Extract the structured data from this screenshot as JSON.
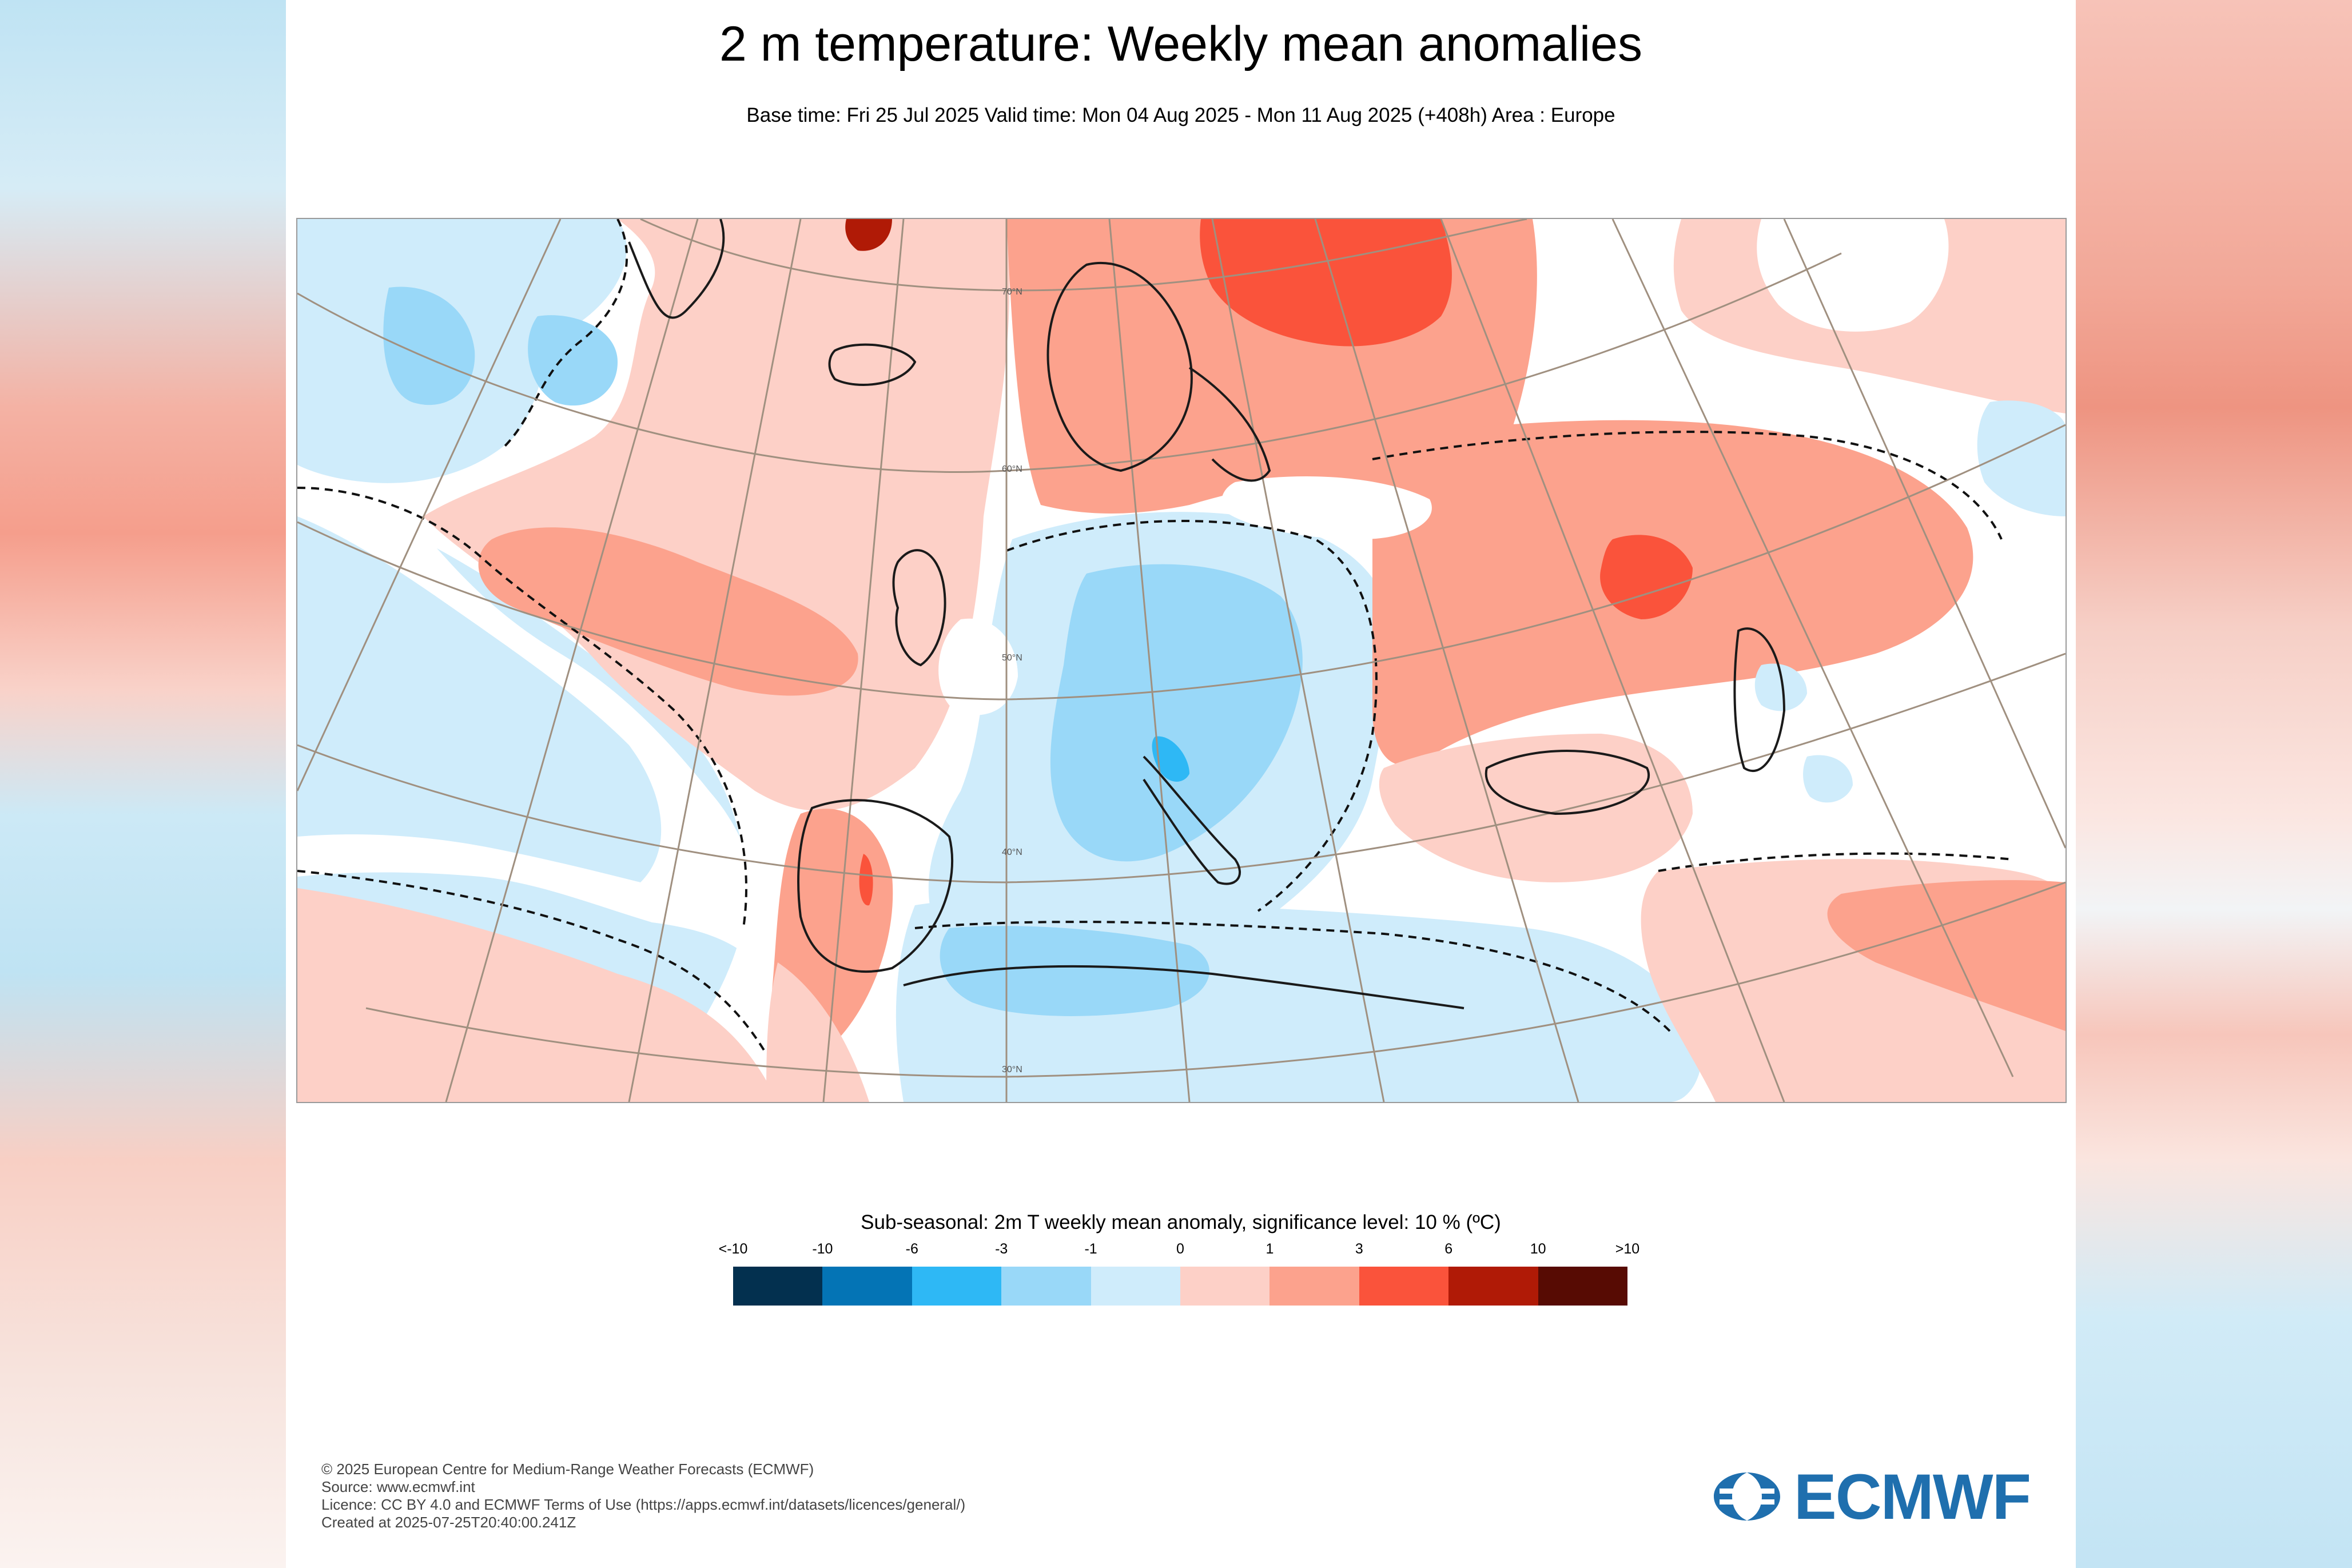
{
  "title": "2 m temperature: Weekly mean anomalies",
  "subtitle": "Base time: Fri 25 Jul 2025 Valid time: Mon 04 Aug 2025 - Mon 11 Aug 2025 (+408h) Area : Europe",
  "map": {
    "lat_labels": [
      "70°N",
      "60°N",
      "50°N",
      "40°N",
      "30°N"
    ]
  },
  "legend": {
    "title": "Sub-seasonal: 2m T weekly mean anomaly, significance level: 10 % (ºC)",
    "ticks": [
      "<-10",
      "-10",
      "-6",
      "-3",
      "-1",
      "0",
      "1",
      "3",
      "6",
      "10",
      ">10"
    ],
    "colors": [
      "#03304f",
      "#0474b5",
      "#2eb8f5",
      "#99d8f8",
      "#cfecfb",
      "#fdd0c7",
      "#fca28d",
      "#fa533b",
      "#b01a06",
      "#570b03"
    ]
  },
  "footer": {
    "lines": [
      "© 2025 European Centre for Medium-Range Weather Forecasts (ECMWF)",
      "Source: www.ecmwf.int",
      "Licence: CC BY 4.0 and ECMWF Terms of Use (https://apps.ecmwf.int/datasets/licences/general/)",
      "Created at 2025-07-25T20:40:00.241Z"
    ]
  },
  "logo": {
    "text": "ECMWF",
    "color": "#1f6fae"
  }
}
